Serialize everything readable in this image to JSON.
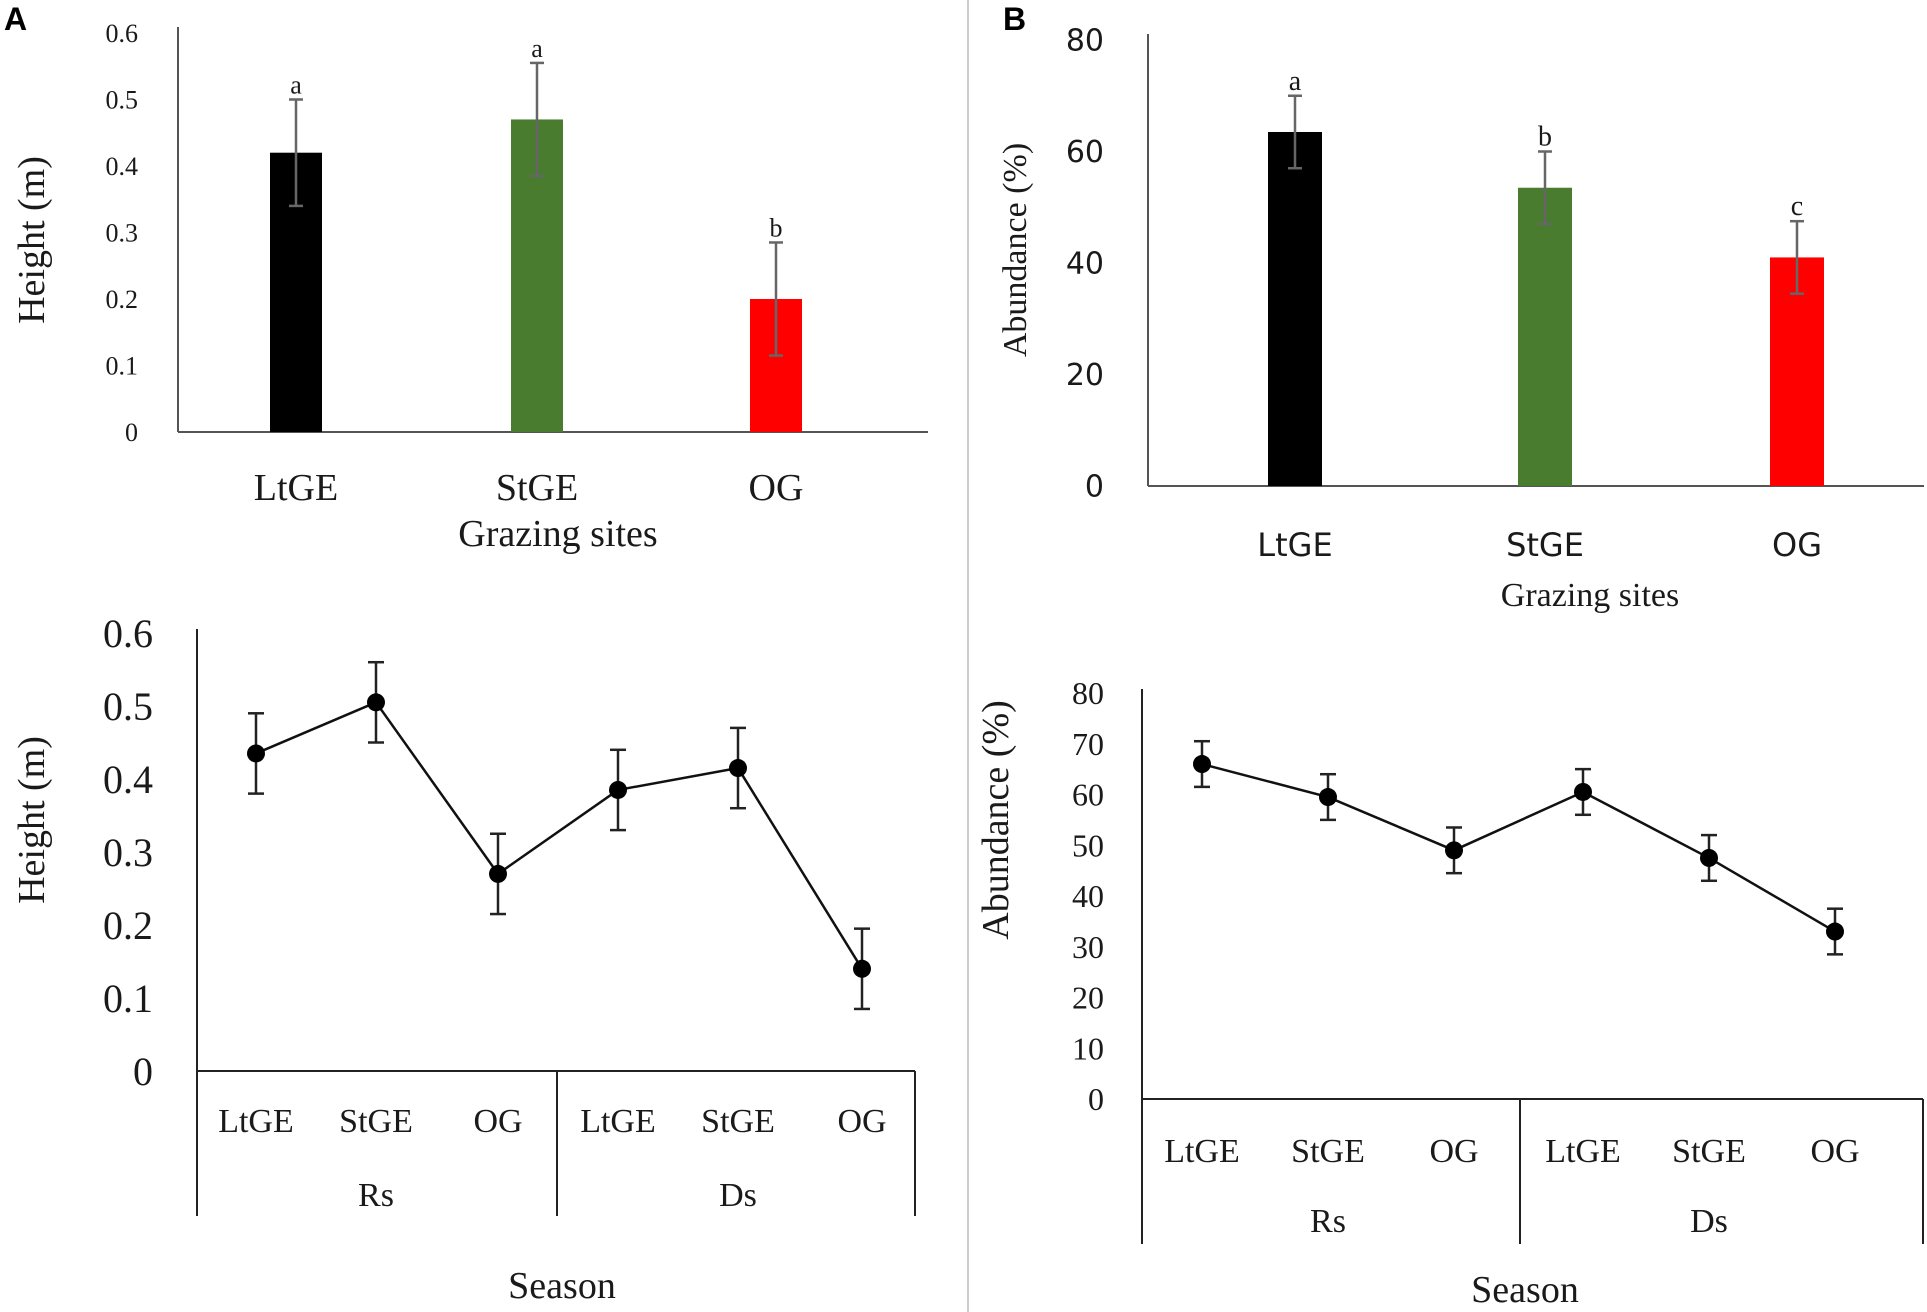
{
  "panels": {
    "a": "A",
    "b": "B"
  },
  "chart_data": [
    {
      "id": "a_top",
      "type": "bar",
      "title": "",
      "xlabel": "Grazing sites",
      "ylabel": "Height (m)",
      "categories": [
        "LtGE",
        "StGE",
        "OG"
      ],
      "values": [
        0.42,
        0.47,
        0.2
      ],
      "errors": [
        0.08,
        0.085,
        0.085
      ],
      "letters": [
        "a",
        "a",
        "b"
      ],
      "colors": [
        "#000000",
        "#4a7c2f",
        "#ff0000"
      ],
      "ylim": [
        0,
        0.6
      ],
      "yticks": [
        "0",
        "0.1",
        "0.2",
        "0.3",
        "0.4",
        "0.5",
        "0.6"
      ],
      "grid": false
    },
    {
      "id": "b_top",
      "type": "bar",
      "title": "",
      "xlabel": "Grazing sites",
      "ylabel": "Abundance (%)",
      "categories": [
        "LtGE",
        "StGE",
        "OG"
      ],
      "values": [
        63.5,
        53.5,
        41
      ],
      "errors": [
        6.5,
        6.5,
        6.5
      ],
      "letters": [
        "a",
        "b",
        "c"
      ],
      "colors": [
        "#000000",
        "#4a7c2f",
        "#ff0000"
      ],
      "ylim": [
        0,
        80
      ],
      "yticks": [
        "0",
        "20",
        "40",
        "60",
        "80"
      ],
      "grid": false
    },
    {
      "id": "a_bottom",
      "type": "line",
      "title": "",
      "xlabel": "Season",
      "ylabel": "Height (m)",
      "categories": [
        "LtGE",
        "StGE",
        "OG",
        "LtGE",
        "StGE",
        "OG"
      ],
      "groups": [
        "Rs",
        "Ds"
      ],
      "values": [
        0.435,
        0.505,
        0.27,
        0.385,
        0.415,
        0.14
      ],
      "errors": [
        0.055,
        0.055,
        0.055,
        0.055,
        0.055,
        0.055
      ],
      "ylim": [
        0,
        0.6
      ],
      "yticks": [
        "0",
        "0.1",
        "0.2",
        "0.3",
        "0.4",
        "0.5",
        "0.6"
      ],
      "grid": false
    },
    {
      "id": "b_bottom",
      "type": "line",
      "title": "",
      "xlabel": "Season",
      "ylabel": "Abundance (%)",
      "categories": [
        "LtGE",
        "StGE",
        "OG",
        "LtGE",
        "StGE",
        "OG"
      ],
      "groups": [
        "Rs",
        "Ds"
      ],
      "values": [
        66,
        59.5,
        49,
        60.5,
        47.5,
        33
      ],
      "errors": [
        4.5,
        4.5,
        4.5,
        4.5,
        4.5,
        4.5
      ],
      "ylim": [
        0,
        80
      ],
      "yticks": [
        "0",
        "10",
        "20",
        "30",
        "40",
        "50",
        "60",
        "70",
        "80"
      ],
      "grid": false
    }
  ]
}
